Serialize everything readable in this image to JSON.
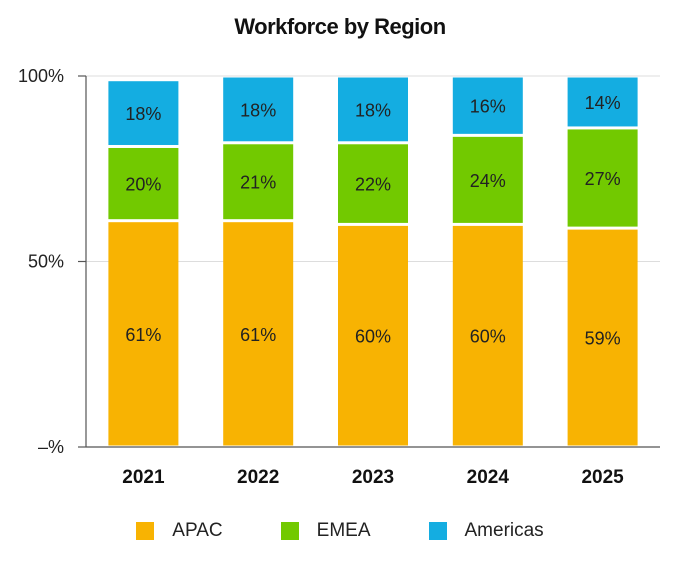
{
  "chart_data": {
    "type": "bar",
    "stacked": true,
    "title": "Workforce by Region",
    "categories": [
      "2021",
      "2022",
      "2023",
      "2024",
      "2025"
    ],
    "series": [
      {
        "name": "APAC",
        "color": "#F8B302",
        "values": [
          61,
          61,
          60,
          60,
          59
        ],
        "labels": [
          "61%",
          "61%",
          "60%",
          "60%",
          "59%"
        ]
      },
      {
        "name": "EMEA",
        "color": "#72C900",
        "values": [
          20,
          21,
          22,
          24,
          27
        ],
        "labels": [
          "20%",
          "21%",
          "22%",
          "24%",
          "27%"
        ]
      },
      {
        "name": "Americas",
        "color": "#14ADE1",
        "values": [
          18,
          18,
          18,
          16,
          14
        ],
        "labels": [
          "18%",
          "18%",
          "18%",
          "16%",
          "14%"
        ]
      }
    ],
    "ylim": [
      0,
      100
    ],
    "y_ticks": [
      {
        "value": 0,
        "label": "–%"
      },
      {
        "value": 50,
        "label": "50%"
      },
      {
        "value": 100,
        "label": "100%"
      }
    ],
    "grid": true,
    "legend_position": "bottom"
  }
}
